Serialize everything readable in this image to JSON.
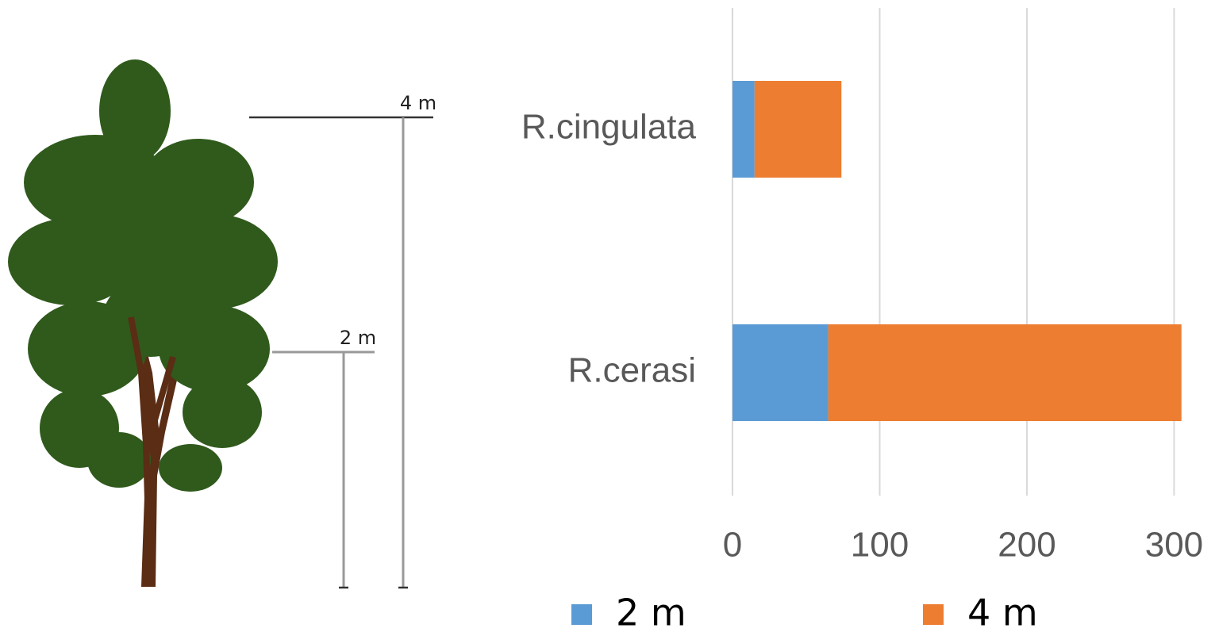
{
  "chart_data": {
    "type": "stacked-barh",
    "categories": [
      "R.cingulata",
      "R.cerasi"
    ],
    "series": [
      {
        "name": "2 m",
        "color": "#5b9bd5",
        "values": [
          15,
          65
        ]
      },
      {
        "name": "4 m",
        "color": "#ed7d31",
        "values": [
          59,
          240
        ]
      }
    ],
    "xlim": [
      0,
      310
    ],
    "xticks": [
      0,
      100,
      200,
      300
    ],
    "grid": true,
    "legend": "bottom",
    "annotations": [
      "4 m",
      "2 m"
    ]
  }
}
